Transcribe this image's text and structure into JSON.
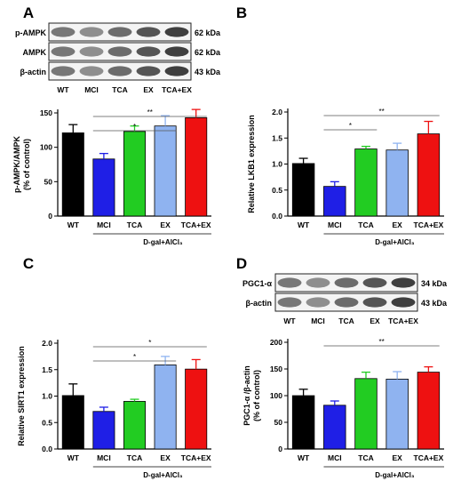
{
  "panels": {
    "A": {
      "letter": "A",
      "blot": {
        "rows": [
          {
            "label": "p-AMPK",
            "size": "62 kDa"
          },
          {
            "label": "AMPK",
            "size": "62 kDa"
          },
          {
            "label": "β-actin",
            "size": "43 kDa"
          }
        ],
        "lanes": [
          "WT",
          "MCI",
          "TCA",
          "EX",
          "TCA+EX"
        ]
      }
    },
    "B": {
      "letter": "B"
    },
    "C": {
      "letter": "C"
    },
    "D": {
      "letter": "D",
      "blot": {
        "rows": [
          {
            "label": "PGC1-α",
            "size": "34 kDa"
          },
          {
            "label": "β-actin",
            "size": "43 kDa"
          }
        ],
        "lanes": [
          "WT",
          "MCI",
          "TCA",
          "EX",
          "TCA+EX"
        ]
      }
    }
  },
  "treatment_label": "D-gal+AlCl₃",
  "colors": {
    "WT": "#000000",
    "MCI": "#1f1fe6",
    "TCA": "#22cc22",
    "EX": "#8fb3f0",
    "TCA+EX": "#ee1111"
  },
  "chart_data": [
    {
      "id": "A",
      "type": "bar",
      "categories": [
        "WT",
        "MCI",
        "TCA",
        "EX",
        "TCA+EX"
      ],
      "values": [
        121,
        83,
        123,
        131,
        143
      ],
      "errors": [
        12,
        8,
        8,
        15,
        12
      ],
      "ylabel": "p-AMPK/AMPK\n(% of control)",
      "ylim": [
        0,
        150
      ],
      "yticks": [
        "0",
        "50",
        "100",
        "150"
      ],
      "significance": [
        {
          "from": "MCI",
          "to": "EX",
          "label": "*"
        },
        {
          "from": "MCI",
          "to": "TCA+EX",
          "label": "**"
        }
      ]
    },
    {
      "id": "B",
      "type": "bar",
      "categories": [
        "WT",
        "MCI",
        "TCA",
        "EX",
        "TCA+EX"
      ],
      "values": [
        1.01,
        0.57,
        1.29,
        1.27,
        1.58
      ],
      "errors": [
        0.1,
        0.09,
        0.05,
        0.13,
        0.24
      ],
      "ylabel": "Relative LKB1 expression",
      "ylim": [
        0,
        2.0
      ],
      "yticks": [
        "0.0",
        "0.5",
        "1.0",
        "1.5",
        "2.0"
      ],
      "significance": [
        {
          "from": "MCI",
          "to": "TCA",
          "label": "*"
        },
        {
          "from": "MCI",
          "to": "TCA+EX",
          "label": "**"
        }
      ]
    },
    {
      "id": "C",
      "type": "bar",
      "categories": [
        "WT",
        "MCI",
        "TCA",
        "EX",
        "TCA+EX"
      ],
      "values": [
        1.01,
        0.71,
        0.9,
        1.59,
        1.51
      ],
      "errors": [
        0.22,
        0.08,
        0.04,
        0.16,
        0.18
      ],
      "ylabel": "Relative SIRT1 expression",
      "ylim": [
        0,
        2.0
      ],
      "yticks": [
        "0.0",
        "0.5",
        "1.0",
        "1.5",
        "2.0"
      ],
      "significance": [
        {
          "from": "MCI",
          "to": "EX",
          "label": "*"
        },
        {
          "from": "MCI",
          "to": "TCA+EX",
          "label": "*"
        }
      ]
    },
    {
      "id": "D",
      "type": "bar",
      "categories": [
        "WT",
        "MCI",
        "TCA",
        "EX",
        "TCA+EX"
      ],
      "values": [
        100,
        82,
        132,
        131,
        144
      ],
      "errors": [
        12,
        8,
        12,
        14,
        10
      ],
      "ylabel": "PGC1-α /β-actin\n(% of control)",
      "ylim": [
        0,
        200
      ],
      "yticks": [
        "0",
        "50",
        "100",
        "150",
        "200"
      ],
      "significance": [
        {
          "from": "MCI",
          "to": "TCA+EX",
          "label": "**"
        }
      ]
    }
  ]
}
